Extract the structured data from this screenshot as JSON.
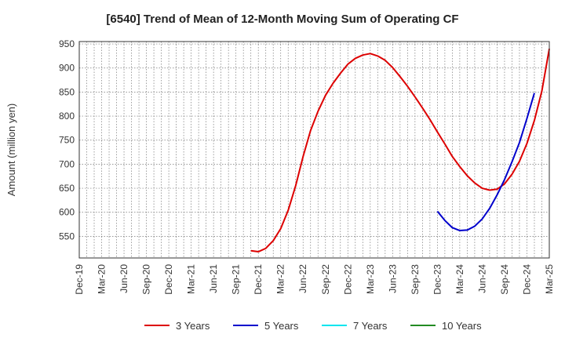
{
  "chart_data": {
    "type": "line",
    "title": "[6540]  Trend of Mean of 12-Month Moving Sum of Operating CF",
    "xlabel": "",
    "ylabel": "Amount (million yen)",
    "ylim": [
      505,
      955
    ],
    "yticks": [
      550,
      600,
      650,
      700,
      750,
      800,
      850,
      900,
      950
    ],
    "grid": true,
    "legend_position": "bottom",
    "x_tick_labels": [
      "Dec-19",
      "Mar-20",
      "Jun-20",
      "Sep-20",
      "Dec-20",
      "Mar-21",
      "Jun-21",
      "Sep-21",
      "Dec-21",
      "Mar-22",
      "Jun-22",
      "Sep-22",
      "Dec-22",
      "Mar-23",
      "Jun-23",
      "Sep-23",
      "Dec-23",
      "Mar-24",
      "Jun-24",
      "Sep-24",
      "Dec-24",
      "Mar-25"
    ],
    "months": [
      "Dec-19",
      "Jan-20",
      "Feb-20",
      "Mar-20",
      "Apr-20",
      "May-20",
      "Jun-20",
      "Jul-20",
      "Aug-20",
      "Sep-20",
      "Oct-20",
      "Nov-20",
      "Dec-20",
      "Jan-21",
      "Feb-21",
      "Mar-21",
      "Apr-21",
      "May-21",
      "Jun-21",
      "Jul-21",
      "Aug-21",
      "Sep-21",
      "Oct-21",
      "Nov-21",
      "Dec-21",
      "Jan-22",
      "Feb-22",
      "Mar-22",
      "Apr-22",
      "May-22",
      "Jun-22",
      "Jul-22",
      "Aug-22",
      "Sep-22",
      "Oct-22",
      "Nov-22",
      "Dec-22",
      "Jan-23",
      "Feb-23",
      "Mar-23",
      "Apr-23",
      "May-23",
      "Jun-23",
      "Jul-23",
      "Aug-23",
      "Sep-23",
      "Oct-23",
      "Nov-23",
      "Dec-23",
      "Jan-24",
      "Feb-24",
      "Mar-24",
      "Apr-24",
      "May-24",
      "Jun-24",
      "Jul-24",
      "Aug-24",
      "Sep-24",
      "Oct-24",
      "Nov-24",
      "Dec-24",
      "Jan-25",
      "Feb-25",
      "Mar-25"
    ],
    "series": [
      {
        "name": "3 Years",
        "color": "#dd0000",
        "start": "Nov-21",
        "values": [
          520,
          518,
          525,
          541,
          566,
          604,
          655,
          716,
          770,
          810,
          843,
          868,
          889,
          908,
          920,
          927,
          930,
          925,
          916,
          901,
          882,
          862,
          840,
          817,
          793,
          767,
          742,
          716,
          695,
          676,
          661,
          650,
          646,
          648,
          659,
          679,
          706,
          743,
          791,
          852,
          940
        ]
      },
      {
        "name": "5 Years",
        "color": "#0000cc",
        "start": "Dec-23",
        "values": [
          602,
          583,
          568,
          562,
          563,
          571,
          586,
          608,
          636,
          668,
          705,
          745,
          795,
          848
        ]
      },
      {
        "name": "7 Years",
        "color": "#00e5ee",
        "start": "",
        "values": []
      },
      {
        "name": "10 Years",
        "color": "#228b22",
        "start": "",
        "values": []
      }
    ]
  }
}
